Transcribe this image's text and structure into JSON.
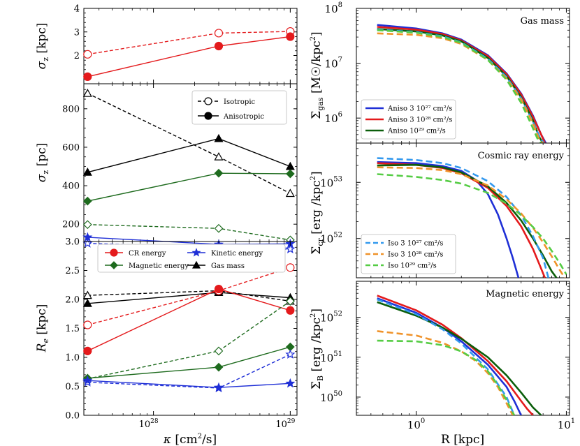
{
  "colors": {
    "red": "#e41a1c",
    "green": "#1e6b1e",
    "blue": "#1f2fd6",
    "black": "#000000",
    "darkgreen": "#0b5e0b",
    "lightblue": "#3399ee",
    "orange": "#f0932a",
    "lightgreen": "#55cc44"
  },
  "chart_data": [
    {
      "id": "sigma-z-kpc",
      "type": "line",
      "xscale": "log",
      "xlim": [
        3.1e+27,
        1.12e+29
      ],
      "ylim": [
        0.8,
        4.0
      ],
      "ylabel": "σz [kpc]",
      "xlabel": "",
      "yticks": [
        "2",
        "3",
        "4"
      ],
      "series": [
        {
          "name": "",
          "group": "iso",
          "color": "red",
          "marker": "circle",
          "x": [
            3.3e+27,
            3e+28,
            1e+29
          ],
          "y": [
            2.05,
            2.95,
            3.02
          ]
        },
        {
          "name": "",
          "group": "aniso",
          "color": "red",
          "marker": "circle",
          "x": [
            3.3e+27,
            3e+28,
            1e+29
          ],
          "y": [
            1.1,
            2.4,
            2.8
          ]
        }
      ]
    },
    {
      "id": "sigma-z-pc",
      "type": "line",
      "xscale": "log",
      "xlim": [
        3.1e+27,
        1.12e+29
      ],
      "ylim": [
        110,
        930
      ],
      "ylabel": "σz [pc]",
      "xlabel": "",
      "yticks": [
        "200",
        "400",
        "600",
        "800"
      ],
      "legend": [
        "Isotropic",
        "Anisotropic"
      ],
      "legend_position": "top-right",
      "series": [
        {
          "name": "",
          "group": "iso",
          "color": "black",
          "marker": "triangle",
          "x": [
            3.3e+27,
            3e+28,
            1e+29
          ],
          "y": [
            880,
            550,
            360
          ]
        },
        {
          "name": "",
          "group": "aniso",
          "color": "black",
          "marker": "triangle",
          "x": [
            3.3e+27,
            3e+28,
            1e+29
          ],
          "y": [
            470,
            645,
            500
          ]
        },
        {
          "name": "",
          "group": "aniso",
          "color": "green",
          "marker": "diamond",
          "x": [
            3.3e+27,
            3e+28,
            1e+29
          ],
          "y": [
            320,
            465,
            462
          ]
        },
        {
          "name": "",
          "group": "iso",
          "color": "green",
          "marker": "diamond",
          "x": [
            3.3e+27,
            3e+28,
            1e+29
          ],
          "y": [
            198,
            178,
            118
          ]
        },
        {
          "name": "",
          "group": "aniso",
          "color": "blue",
          "marker": "star",
          "x": [
            3.3e+27,
            3e+28,
            1e+29
          ],
          "y": [
            132,
            95,
            98
          ]
        },
        {
          "name": "",
          "group": "iso",
          "color": "blue",
          "marker": "star",
          "x": [
            3.3e+27,
            3e+28,
            1e+29
          ],
          "y": [
            100,
            80,
            70
          ]
        }
      ]
    },
    {
      "id": "re-kpc",
      "type": "line",
      "xscale": "log",
      "xlim": [
        3.1e+27,
        1.12e+29
      ],
      "ylim": [
        0.0,
        3.0
      ],
      "ylabel": "Re [kpc]",
      "xlabel": "κ [cm²/s]",
      "yticks": [
        "0.0",
        "0.5",
        "1.0",
        "1.5",
        "2.0",
        "2.5",
        "3.0"
      ],
      "xticks": [
        "10²⁸",
        "10²⁹"
      ],
      "legend": [
        "CR energy",
        "Magnetic energy",
        "Kinetic energy",
        "Gas mass"
      ],
      "legend_position": "top",
      "series": [
        {
          "name": "",
          "group": "iso",
          "color": "black",
          "marker": "triangle",
          "x": [
            3.3e+27,
            3e+28,
            1e+29
          ],
          "y": [
            2.07,
            2.15,
            1.97
          ]
        },
        {
          "name": "",
          "group": "aniso",
          "color": "black",
          "marker": "triangle",
          "x": [
            3.3e+27,
            3e+28,
            1e+29
          ],
          "y": [
            1.93,
            2.12,
            2.03
          ]
        },
        {
          "name": "",
          "group": "iso",
          "color": "red",
          "marker": "circle",
          "x": [
            3.3e+27,
            3e+28,
            1e+29
          ],
          "y": [
            1.56,
            2.15,
            2.55
          ]
        },
        {
          "name": "",
          "group": "aniso",
          "color": "red",
          "marker": "circle",
          "x": [
            3.3e+27,
            3e+28,
            1e+29
          ],
          "y": [
            1.11,
            2.18,
            1.81
          ]
        },
        {
          "name": "",
          "group": "iso",
          "color": "green",
          "marker": "diamond",
          "x": [
            3.3e+27,
            3e+28,
            1e+29
          ],
          "y": [
            0.63,
            1.11,
            1.97
          ]
        },
        {
          "name": "",
          "group": "aniso",
          "color": "green",
          "marker": "diamond",
          "x": [
            3.3e+27,
            3e+28,
            1e+29
          ],
          "y": [
            0.64,
            0.83,
            1.18
          ]
        },
        {
          "name": "",
          "group": "iso",
          "color": "blue",
          "marker": "star",
          "x": [
            3.3e+27,
            3e+28,
            1e+29
          ],
          "y": [
            0.57,
            0.47,
            1.05
          ]
        },
        {
          "name": "",
          "group": "aniso",
          "color": "blue",
          "marker": "star",
          "x": [
            3.3e+27,
            3e+28,
            1e+29
          ],
          "y": [
            0.6,
            0.48,
            0.55
          ]
        }
      ]
    },
    {
      "id": "sigma-gas",
      "type": "line",
      "xscale": "log",
      "yscale": "log",
      "xlim": [
        0.4,
        10.5
      ],
      "ylim": [
        350000.0,
        100000000.0
      ],
      "ylabel": "Σgas [M☉/kpc²]",
      "xlabel": "",
      "annotation": "Gas mass",
      "ytick_exponents": [
        "10⁶",
        "10⁷",
        "10⁸"
      ],
      "legend": [
        "Aniso 3 10²⁷ cm²/s",
        "Aniso 3 10²⁸ cm²/s",
        "Aniso 10²⁹ cm²/s"
      ],
      "legend_position": "lower-left",
      "series": [
        {
          "name": "",
          "color": "blue",
          "dash": false,
          "x": [
            0.55,
            1.0,
            1.5,
            2.0,
            3.0,
            4.0,
            5.0,
            6.0,
            6.8,
            7.3
          ],
          "y": [
            50000000.0,
            43000000.0,
            35000000.0,
            27000000.0,
            14000000.0,
            6500000.0,
            2800000.0,
            1100000.0,
            500000.0,
            350000.0
          ]
        },
        {
          "name": "",
          "color": "red",
          "dash": false,
          "x": [
            0.55,
            1.0,
            1.5,
            2.0,
            3.0,
            4.0,
            5.0,
            6.0,
            6.8,
            7.2
          ],
          "y": [
            46000000.0,
            41000000.0,
            34000000.0,
            26000000.0,
            13500000.0,
            6300000.0,
            2700000.0,
            1050000.0,
            500000.0,
            350000.0
          ]
        },
        {
          "name": "",
          "color": "darkgreen",
          "dash": false,
          "x": [
            0.55,
            1.0,
            1.5,
            2.0,
            3.0,
            4.0,
            5.0,
            6.0,
            6.6,
            7.0
          ],
          "y": [
            42000000.0,
            38000000.0,
            32000000.0,
            25000000.0,
            12500000.0,
            5800000.0,
            2400000.0,
            900000.0,
            450000.0,
            350000.0
          ]
        },
        {
          "name": "",
          "color": "lightblue",
          "dash": true,
          "x": [
            0.55,
            1.0,
            1.5,
            2.0,
            3.0,
            4.0,
            5.0,
            6.0,
            6.7,
            7.1
          ],
          "y": [
            41000000.0,
            37000000.0,
            31000000.0,
            24000000.0,
            12000000.0,
            5600000.0,
            2300000.0,
            850000.0,
            430000.0,
            350000.0
          ]
        },
        {
          "name": "",
          "color": "orange",
          "dash": true,
          "x": [
            0.55,
            1.0,
            1.5,
            2.0,
            3.0,
            4.0,
            5.0,
            6.0,
            6.6,
            7.0
          ],
          "y": [
            35000000.0,
            33000000.0,
            28500000.0,
            22500000.0,
            11500000.0,
            5300000.0,
            2200000.0,
            800000.0,
            410000.0,
            350000.0
          ]
        },
        {
          "name": "",
          "color": "lightgreen",
          "dash": true,
          "x": [
            0.55,
            1.0,
            1.5,
            2.0,
            3.0,
            4.0,
            5.0,
            5.8,
            6.4,
            6.8
          ],
          "y": [
            40000000.0,
            36000000.0,
            30000000.0,
            23500000.0,
            11500000.0,
            5000000.0,
            1900000.0,
            800000.0,
            430000.0,
            350000.0
          ]
        }
      ]
    },
    {
      "id": "sigma-cr",
      "type": "line",
      "xscale": "log",
      "yscale": "log",
      "xlim": [
        0.4,
        10.5
      ],
      "ylim": [
        2e+51,
        5e+53
      ],
      "ylabel": "Σcr [erg/kpc²]",
      "xlabel": "",
      "annotation": "Cosmic ray energy",
      "ytick_exponents": [
        "10⁵²",
        "10⁵³"
      ],
      "legend": [
        "Iso 3 10²⁷ cm²/s",
        "Iso 3 10²⁸ cm²/s",
        "Iso 10²⁹ cm²/s"
      ],
      "legend_position": "lower-left",
      "series": [
        {
          "name": "",
          "color": "blue",
          "dash": false,
          "x": [
            0.55,
            1.0,
            1.5,
            2.0,
            2.5,
            3.0,
            3.5,
            4.0,
            4.4,
            4.8
          ],
          "y": [
            2.3e+53,
            2.2e+53,
            1.95e+53,
            1.6e+53,
            1.1e+53,
            6.2e+52,
            2.7e+52,
            1e+52,
            4.5e+51,
            2e+51
          ]
        },
        {
          "name": "",
          "color": "red",
          "dash": false,
          "x": [
            0.55,
            1.0,
            1.5,
            2.0,
            3.0,
            4.0,
            5.0,
            6.0,
            6.7,
            7.2
          ],
          "y": [
            2.2e+53,
            2.05e+53,
            1.8e+53,
            1.45e+53,
            8e+52,
            3.8e+52,
            1.65e+52,
            6.5e+51,
            3.2e+51,
            2e+51
          ]
        },
        {
          "name": "",
          "color": "darkgreen",
          "dash": false,
          "x": [
            0.55,
            1.0,
            1.5,
            2.0,
            3.0,
            4.0,
            5.0,
            6.0,
            7.0,
            8.0,
            8.6
          ],
          "y": [
            2e+53,
            2.05e+53,
            1.85e+53,
            1.5e+53,
            8.5e+52,
            4.3e+52,
            2.1e+52,
            1e+52,
            5e+51,
            2.6e+51,
            2e+51
          ]
        },
        {
          "name": "",
          "color": "lightblue",
          "dash": true,
          "x": [
            0.55,
            1.0,
            1.5,
            2.0,
            3.0,
            4.0,
            5.0,
            6.0,
            7.0,
            7.6
          ],
          "y": [
            2.7e+53,
            2.5e+53,
            2.2e+53,
            1.8e+53,
            1.05e+53,
            5.5e+52,
            2.6e+52,
            1.1e+52,
            4.5e+51,
            2e+51
          ]
        },
        {
          "name": "",
          "color": "orange",
          "dash": true,
          "x": [
            0.55,
            1.0,
            1.5,
            2.0,
            3.0,
            4.0,
            5.0,
            6.0,
            7.0,
            8.0,
            9.0,
            10.0
          ],
          "y": [
            1.85e+53,
            1.8e+53,
            1.65e+53,
            1.4e+53,
            8.8e+52,
            5e+52,
            2.8e+52,
            1.55e+52,
            8.5e+51,
            4.8e+51,
            2.8e+51,
            1.8e+51
          ]
        },
        {
          "name": "",
          "color": "lightgreen",
          "dash": true,
          "x": [
            0.55,
            1.0,
            1.5,
            2.0,
            3.0,
            4.0,
            5.0,
            6.0,
            7.0,
            8.0,
            9.0,
            10.0
          ],
          "y": [
            1.4e+53,
            1.25e+53,
            1.1e+53,
            9.5e+52,
            6.5e+52,
            4.2e+52,
            2.6e+52,
            1.6e+52,
            1e+52,
            6e+51,
            3.7e+51,
            2.3e+51
          ]
        }
      ]
    },
    {
      "id": "sigma-b",
      "type": "line",
      "xscale": "log",
      "yscale": "log",
      "xlim": [
        0.4,
        10.5
      ],
      "ylim": [
        3.5e+49,
        8e+52
      ],
      "ylabel": "ΣB [erg/kpc²]",
      "xlabel": "R [kpc]",
      "annotation": "Magnetic energy",
      "ytick_exponents": [
        "10⁵⁰",
        "10⁵¹",
        "10⁵²"
      ],
      "xtick_labels": [
        "10⁰",
        "10¹"
      ],
      "series": [
        {
          "name": "",
          "color": "red",
          "dash": false,
          "x": [
            0.55,
            1.0,
            1.5,
            2.0,
            3.0,
            4.0,
            5.0,
            5.5,
            6.0
          ],
          "y": [
            3.5e+52,
            1.5e+52,
            6.5e+51,
            3e+51,
            8e+50,
            2.5e+50,
            8e+49,
            5e+49,
            3.5e+49
          ]
        },
        {
          "name": "",
          "color": "blue",
          "dash": false,
          "x": [
            0.55,
            1.0,
            1.5,
            2.0,
            3.0,
            4.0,
            4.5,
            5.0
          ],
          "y": [
            3e+52,
            1.3e+52,
            5.5e+51,
            2.5e+51,
            6.5e+50,
            1.8e+50,
            8e+49,
            3.5e+49
          ]
        },
        {
          "name": "",
          "color": "darkgreen",
          "dash": false,
          "x": [
            0.55,
            1.0,
            1.5,
            2.0,
            3.0,
            4.0,
            5.0,
            6.0,
            6.8
          ],
          "y": [
            2.4e+52,
            1.1e+52,
            5.5e+51,
            2.9e+51,
            1e+51,
            3.5e+50,
            1.3e+50,
            5.5e+49,
            3.5e+49
          ]
        },
        {
          "name": "",
          "color": "lightblue",
          "dash": true,
          "x": [
            0.55,
            1.0,
            1.5,
            2.0,
            3.0,
            4.0,
            4.5
          ],
          "y": [
            2.8e+52,
            1.2e+52,
            5e+51,
            2.2e+51,
            5e+50,
            1e+50,
            3.5e+49
          ]
        },
        {
          "name": "",
          "color": "orange",
          "dash": true,
          "x": [
            0.55,
            1.0,
            1.5,
            2.0,
            2.5,
            3.0,
            3.5,
            4.0,
            4.4
          ],
          "y": [
            4.5e+51,
            3.5e+51,
            2.3e+51,
            1.4e+51,
            8e+50,
            4e+50,
            1.8e+50,
            7e+49,
            3.5e+49
          ]
        },
        {
          "name": "",
          "color": "lightgreen",
          "dash": true,
          "x": [
            0.55,
            1.0,
            1.5,
            2.0,
            2.5,
            3.0,
            3.5,
            4.0,
            4.5
          ],
          "y": [
            2.6e+51,
            2.5e+51,
            2e+51,
            1.4e+51,
            8.5e+50,
            4.5e+50,
            2e+50,
            8.5e+49,
            3.5e+49
          ]
        }
      ]
    }
  ],
  "legend_text": {
    "isotropic": "Isotropic",
    "anisotropic": "Anisotropic",
    "cr_energy": "CR energy",
    "magnetic_energy": "Magnetic energy",
    "kinetic_energy": "Kinetic energy",
    "gas_mass": "Gas mass",
    "aniso_1": "Aniso 3 10²⁷ cm²/s",
    "aniso_2": "Aniso 3 10²⁸ cm²/s",
    "aniso_3": "Aniso 10²⁹ cm²/s",
    "iso_1": "Iso 3 10²⁷ cm²/s",
    "iso_2": "Iso 3 10²⁸ cm²/s",
    "iso_3": "Iso 10²⁹ cm²/s"
  }
}
